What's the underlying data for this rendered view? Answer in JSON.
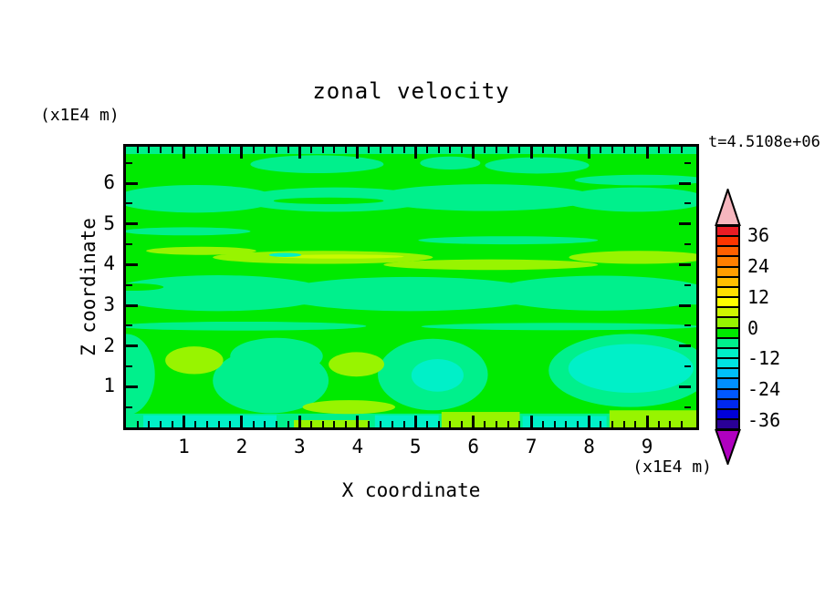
{
  "title": "zonal velocity",
  "time_label": "t=4.5108e+06",
  "axes": {
    "x": {
      "label": "X coordinate",
      "units": "(x1E4 m)",
      "range": [
        0,
        9.85
      ],
      "major_ticks": [
        1,
        2,
        3,
        4,
        5,
        6,
        7,
        8,
        9
      ],
      "minor_step": 0.2
    },
    "z": {
      "label": "Z coordinate",
      "units": "(x1E4 m)",
      "range": [
        0,
        6.9
      ],
      "major_ticks": [
        1,
        2,
        3,
        4,
        5,
        6
      ],
      "minor_step": 0.5
    }
  },
  "colorbar": {
    "labels": [
      "36",
      "24",
      "12",
      "0",
      "-12",
      "-24",
      "-36"
    ],
    "label_values": [
      36,
      24,
      12,
      0,
      -12,
      -24,
      -36
    ],
    "level_min": -40,
    "level_max": 40,
    "level_step": 4,
    "over_color": "#f6b6be",
    "under_color": "#b000c0",
    "segment_colors_top_to_bottom": [
      "#ea1c24",
      "#fd3500",
      "#ff6000",
      "#ff7f00",
      "#ff9e00",
      "#ffbf00",
      "#ffdf00",
      "#ffff00",
      "#cef500",
      "#98f400",
      "#00ea00",
      "#00f08c",
      "#00f0c8",
      "#00e2e2",
      "#00c0f8",
      "#0090ff",
      "#0058ff",
      "#0028f0",
      "#0000d8",
      "#2a0096"
    ]
  },
  "palette": {
    "green": "#00ea00",
    "spring": "#00f08c",
    "aqua": "#00f0c8",
    "chartreuse": "#98f400",
    "bright": "#c8fa00"
  },
  "chart_data": {
    "type": "filled_contour",
    "title": "zonal velocity",
    "xlabel": "X coordinate",
    "ylabel": "Z coordinate",
    "axis_units": "x1E4 m",
    "time_annotation": "t=4.5108e+06",
    "x_range": [
      0,
      9.85
    ],
    "z_range": [
      0,
      6.9
    ],
    "contour_interval": 4,
    "color_levels": [
      -40,
      -36,
      -32,
      -28,
      -24,
      -20,
      -16,
      -12,
      -8,
      -4,
      0,
      4,
      8,
      12,
      16,
      20,
      24,
      28,
      32,
      36,
      40
    ],
    "value_band_for_color": {
      "green": [
        0,
        4
      ],
      "spring": [
        -4,
        0
      ],
      "aqua": [
        -8,
        -4
      ],
      "chartreuse": [
        4,
        8
      ],
      "bright": [
        8,
        12
      ]
    },
    "description": "Horizontal wavy bands: mostly 0..4 (green) and -4..0 (spring green); 4..8 chartreuse streaks near z=4; -8..-4 aqua blobs near z=1-2 at x=5.4 and x=8-9.5; chartreuse blobs near z=1.5 at x=1.2, x=4; aqua and chartreuse strips along bottom edge.",
    "regions": [
      {
        "t": "rect",
        "c": "spring",
        "x0": 0,
        "x1": 9.85,
        "z0": 6.72,
        "z1": 6.9
      },
      {
        "t": "ell",
        "c": "spring",
        "cx": 3.3,
        "cz": 6.47,
        "rx": 1.15,
        "rz": 0.22
      },
      {
        "t": "ell",
        "c": "spring",
        "cx": 5.6,
        "cz": 6.5,
        "rx": 0.52,
        "rz": 0.16
      },
      {
        "t": "ell",
        "c": "spring",
        "cx": 7.1,
        "cz": 6.44,
        "rx": 0.9,
        "rz": 0.2
      },
      {
        "t": "ell",
        "c": "spring",
        "cx": 8.9,
        "cz": 6.08,
        "rx": 1.15,
        "rz": 0.13
      },
      {
        "t": "ell",
        "c": "spring",
        "cx": 1.2,
        "cz": 5.62,
        "rx": 1.4,
        "rz": 0.34
      },
      {
        "t": "ell",
        "c": "spring",
        "cx": 3.6,
        "cz": 5.6,
        "rx": 1.6,
        "rz": 0.3
      },
      {
        "t": "ell",
        "c": "spring",
        "cx": 6.2,
        "cz": 5.65,
        "rx": 1.9,
        "rz": 0.33
      },
      {
        "t": "ell",
        "c": "spring",
        "cx": 8.8,
        "cz": 5.6,
        "rx": 1.25,
        "rz": 0.3
      },
      {
        "t": "ell",
        "c": "green",
        "cx": 3.5,
        "cz": 5.57,
        "rx": 0.95,
        "rz": 0.08
      },
      {
        "t": "ell",
        "c": "spring",
        "cx": 1.05,
        "cz": 4.82,
        "rx": 1.1,
        "rz": 0.1
      },
      {
        "t": "ell",
        "c": "spring",
        "cx": 6.6,
        "cz": 4.6,
        "rx": 1.55,
        "rz": 0.1
      },
      {
        "t": "rect",
        "c": "spring",
        "x0": 0,
        "x1": 9.85,
        "z0": 3.02,
        "z1": 3.52
      },
      {
        "t": "ell",
        "c": "spring",
        "cx": 1.6,
        "cz": 3.3,
        "rx": 1.9,
        "rz": 0.44
      },
      {
        "t": "ell",
        "c": "spring",
        "cx": 4.9,
        "cz": 3.28,
        "rx": 2.3,
        "rz": 0.42
      },
      {
        "t": "ell",
        "c": "spring",
        "cx": 8.2,
        "cz": 3.3,
        "rx": 1.9,
        "rz": 0.43
      },
      {
        "t": "ell",
        "c": "green",
        "cx": 0.1,
        "cz": 3.45,
        "rx": 0.55,
        "rz": 0.09
      },
      {
        "t": "ell",
        "c": "spring",
        "cx": 2.0,
        "cz": 2.49,
        "rx": 2.15,
        "rz": 0.11
      },
      {
        "t": "ell",
        "c": "spring",
        "cx": 7.5,
        "cz": 2.48,
        "rx": 2.4,
        "rz": 0.09
      },
      {
        "t": "ell",
        "c": "spring",
        "cx": 0.0,
        "cz": 1.3,
        "rx": 0.5,
        "rz": 1.0
      },
      {
        "t": "ell",
        "c": "spring",
        "cx": 2.5,
        "cz": 1.15,
        "rx": 1.0,
        "rz": 0.8
      },
      {
        "t": "ell",
        "c": "spring",
        "cx": 2.6,
        "cz": 1.75,
        "rx": 0.8,
        "rz": 0.45
      },
      {
        "t": "ell",
        "c": "spring",
        "cx": 5.3,
        "cz": 1.3,
        "rx": 0.95,
        "rz": 0.88
      },
      {
        "t": "ell",
        "c": "spring",
        "cx": 8.7,
        "cz": 1.4,
        "rx": 1.4,
        "rz": 0.9
      },
      {
        "t": "rect",
        "c": "spring",
        "x0": 0,
        "x1": 9.85,
        "z0": 0,
        "z1": 0.34
      },
      {
        "t": "ell",
        "c": "chartreuse",
        "cx": 1.3,
        "cz": 4.34,
        "rx": 0.95,
        "rz": 0.1
      },
      {
        "t": "ell",
        "c": "chartreuse",
        "cx": 3.4,
        "cz": 4.18,
        "rx": 1.9,
        "rz": 0.16
      },
      {
        "t": "ell",
        "c": "chartreuse",
        "cx": 6.3,
        "cz": 4.0,
        "rx": 1.85,
        "rz": 0.13
      },
      {
        "t": "ell",
        "c": "chartreuse",
        "cx": 8.85,
        "cz": 4.18,
        "rx": 1.2,
        "rz": 0.16
      },
      {
        "t": "ell",
        "c": "bright",
        "cx": 3.7,
        "cz": 4.2,
        "rx": 1.1,
        "rz": 0.05
      },
      {
        "t": "ell",
        "c": "aqua",
        "cx": 2.75,
        "cz": 4.24,
        "rx": 0.28,
        "rz": 0.05
      },
      {
        "t": "ell",
        "c": "aqua",
        "cx": 5.38,
        "cz": 1.28,
        "rx": 0.45,
        "rz": 0.4
      },
      {
        "t": "ell",
        "c": "aqua",
        "cx": 8.72,
        "cz": 1.45,
        "rx": 1.08,
        "rz": 0.6
      },
      {
        "t": "ell",
        "c": "chartreuse",
        "cx": 1.18,
        "cz": 1.65,
        "rx": 0.5,
        "rz": 0.34
      },
      {
        "t": "ell",
        "c": "chartreuse",
        "cx": 3.98,
        "cz": 1.55,
        "rx": 0.48,
        "rz": 0.3
      },
      {
        "t": "ell",
        "c": "chartreuse",
        "cx": 3.85,
        "cz": 0.5,
        "rx": 0.8,
        "rz": 0.17
      },
      {
        "t": "rect",
        "c": "aqua",
        "x0": 0.3,
        "x1": 2.6,
        "z0": 0,
        "z1": 0.3
      },
      {
        "t": "rect",
        "c": "chartreuse",
        "x0": 2.9,
        "x1": 4.2,
        "z0": 0,
        "z1": 0.18
      },
      {
        "t": "rect",
        "c": "aqua",
        "x0": 4.3,
        "x1": 5.4,
        "z0": 0,
        "z1": 0.3
      },
      {
        "t": "rect",
        "c": "chartreuse",
        "x0": 5.45,
        "x1": 6.8,
        "z0": 0,
        "z1": 0.38
      },
      {
        "t": "rect",
        "c": "aqua",
        "x0": 6.85,
        "x1": 8.3,
        "z0": 0,
        "z1": 0.28
      },
      {
        "t": "rect",
        "c": "chartreuse",
        "x0": 8.35,
        "x1": 9.85,
        "z0": 0,
        "z1": 0.42
      }
    ]
  }
}
